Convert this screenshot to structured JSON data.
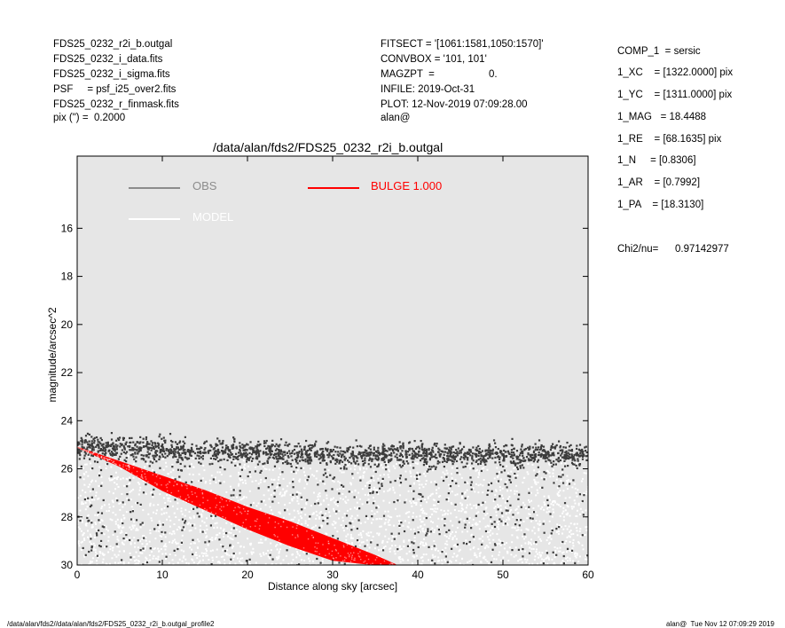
{
  "header_left": [
    "FDS25_0232_r2i_b.outgal",
    "FDS25_0232_i_data.fits",
    "FDS25_0232_i_sigma.fits",
    "PSF     = psf_i25_over2.fits",
    "FDS25_0232_r_finmask.fits",
    "pix (\") =  0.2000"
  ],
  "header_middle": [
    "FITSECT = '[1061:1581,1050:1570]'",
    "CONVBOX = '101, 101'",
    "MAGZPT  =",
    "INFILE: 2019-Oct-31",
    "PLOT: 12-Nov-2019 07:09:28.00",
    "alan@"
  ],
  "magzpt_value": "0.",
  "params": [
    "COMP_1  = sersic",
    "1_XC    = [1322.0000] pix",
    "1_YC    = [1311.0000] pix",
    "1_MAG   = 18.4488",
    "1_RE    = [68.1635] pix",
    "1_N     = [0.8306]",
    "1_AR    = [0.7992]",
    "1_PA    = [18.3130]"
  ],
  "chi2_label": "Chi2/nu=",
  "chi2_value": "0.97142977",
  "footer_left": "/data/alan/fds2//data/alan/fds2/FDS25_0232_r2i_b.outgal_profile2",
  "footer_right": "alan@  Tue Nov 12 07:09:29 2019",
  "colors": {
    "obs": "#8c8c8c",
    "model": "#ffffff",
    "bulge": "#ff0000",
    "points_dark": "#3c3c3c",
    "background": "#e6e6e6"
  },
  "chart_data": {
    "type": "scatter",
    "title": "/data/alan/fds2/FDS25_0232_r2i_b.outgal",
    "xlabel": "Distance along sky [arcsec]",
    "ylabel": "magnitude/arcsec^2",
    "xlim": [
      0,
      60
    ],
    "ylim": [
      30,
      13
    ],
    "y_inverted": true,
    "x_ticks": [
      "0",
      "10",
      "20",
      "30",
      "40",
      "50",
      "60"
    ],
    "y_ticks": [
      "16",
      "18",
      "20",
      "22",
      "24",
      "26",
      "28",
      "30"
    ],
    "grid": false,
    "legend": [
      {
        "label": "OBS",
        "color": "#8c8c8c"
      },
      {
        "label": "BULGE  1.000",
        "color": "#ff0000"
      },
      {
        "label": "MODEL",
        "color": "#ffffff"
      }
    ],
    "series": [
      {
        "name": "OBS",
        "description_points": "dense scatter of observed pixel surface brightness",
        "x": [
          0,
          5,
          10,
          20,
          30,
          40,
          50,
          60
        ],
        "y_dense_band": [
          25.1,
          25.1,
          25.2,
          25.3,
          25.4,
          25.4,
          25.4,
          25.4
        ],
        "y_spread_to": [
          30,
          30,
          30,
          30,
          30,
          30,
          30,
          30
        ]
      },
      {
        "name": "BULGE  1.000",
        "x": [
          0,
          5,
          10,
          15,
          20,
          25,
          30,
          35,
          37.5
        ],
        "y_upper": [
          25.1,
          25.7,
          26.3,
          26.9,
          27.6,
          28.2,
          28.9,
          29.6,
          30.0
        ],
        "y_lower": [
          25.1,
          25.9,
          26.9,
          27.7,
          28.5,
          29.2,
          29.8,
          30.0,
          30.0
        ]
      }
    ]
  }
}
